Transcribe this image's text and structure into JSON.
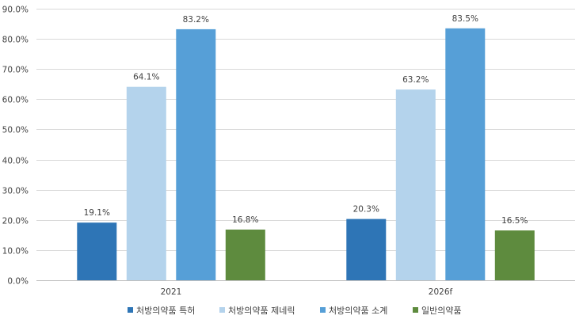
{
  "chart_data": {
    "type": "bar",
    "categories": [
      "2021",
      "2026f"
    ],
    "series": [
      {
        "name": "처방의약품 특허",
        "color": "#2E75B6",
        "values": [
          19.1,
          20.3
        ]
      },
      {
        "name": "처방의약품 제네릭",
        "color": "#B4D3EC",
        "values": [
          64.1,
          63.2
        ]
      },
      {
        "name": "처방의약품 소계",
        "color": "#569FD7",
        "values": [
          83.2,
          83.5
        ]
      },
      {
        "name": "일반의약품",
        "color": "#5E8B3E",
        "values": [
          16.8,
          16.5
        ]
      }
    ],
    "data_labels": [
      [
        "19.1%",
        "20.3%"
      ],
      [
        "64.1%",
        "63.2%"
      ],
      [
        "83.2%",
        "83.5%"
      ],
      [
        "16.8%",
        "16.5%"
      ]
    ],
    "ylim": [
      0,
      90
    ],
    "yticks": [
      0,
      10,
      20,
      30,
      40,
      50,
      60,
      70,
      80,
      90
    ],
    "ytick_labels": [
      "0.0%",
      "10.0%",
      "20.0%",
      "30.0%",
      "40.0%",
      "50.0%",
      "60.0%",
      "70.0%",
      "80.0%",
      "90.0%"
    ],
    "grid": true,
    "legend_position": "bottom",
    "title": "",
    "xlabel": "",
    "ylabel": ""
  }
}
